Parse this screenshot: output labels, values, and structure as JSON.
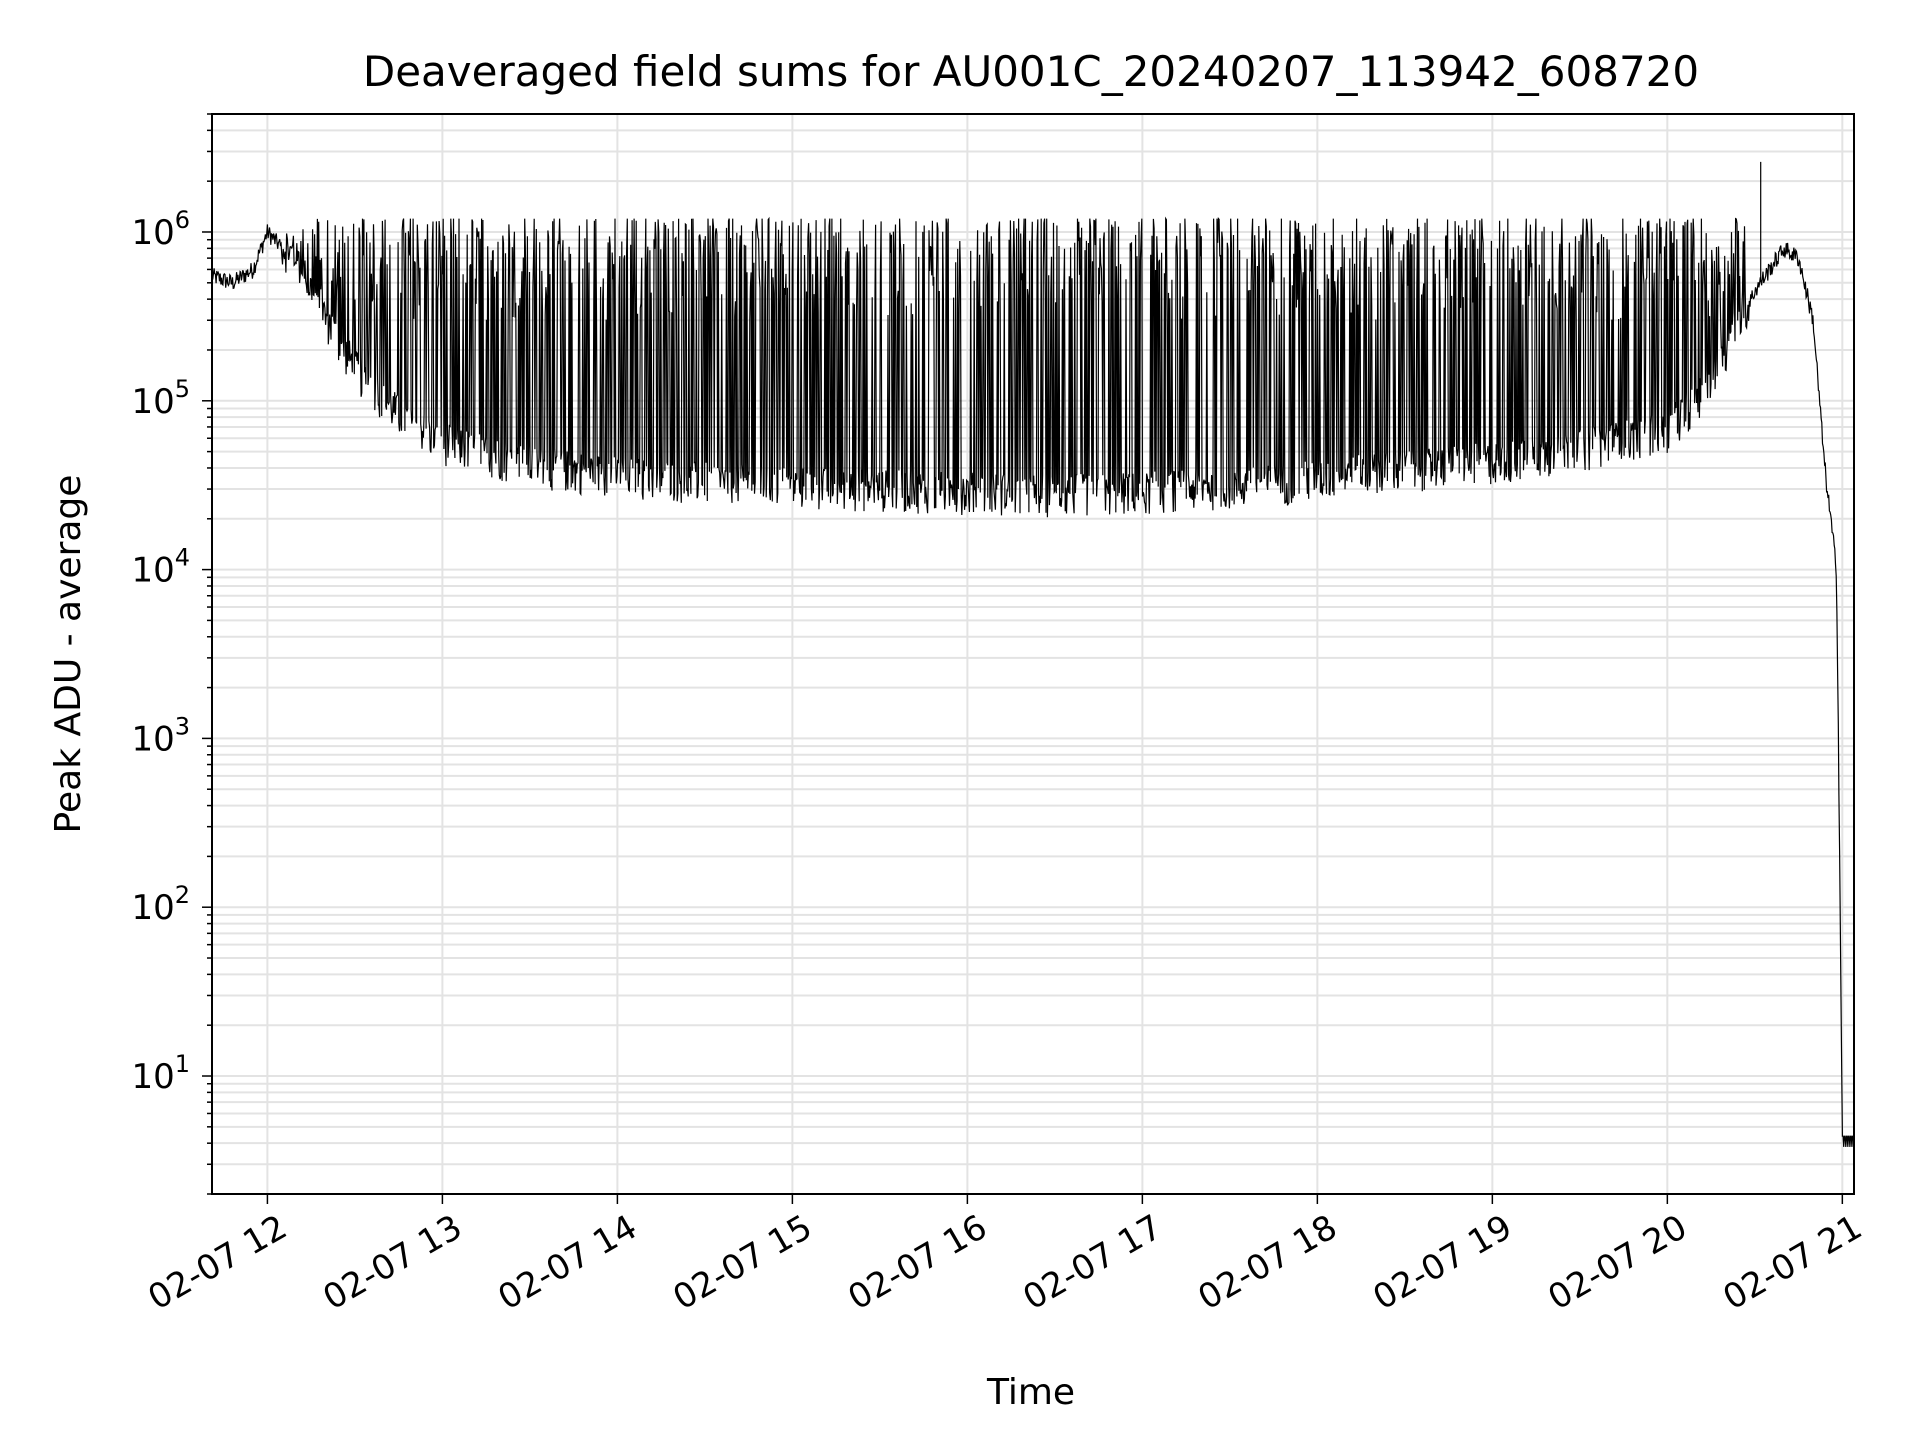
{
  "chart_data": {
    "type": "line",
    "title": "Deaveraged field sums for AU001C_20240207_113942_608720",
    "xlabel": "Time",
    "ylabel": "Peak ADU - average",
    "yscale": "log",
    "ylim": [
      2,
      5000000
    ],
    "xlim": [
      "02-07 11:41",
      "02-07 21:04"
    ],
    "grid": true,
    "line_color": "#000000",
    "grid_color": "#e3e3e3",
    "x_ticks": [
      "02-07 12",
      "02-07 13",
      "02-07 14",
      "02-07 15",
      "02-07 16",
      "02-07 17",
      "02-07 18",
      "02-07 19",
      "02-07 20",
      "02-07 21"
    ],
    "y_ticks": [
      {
        "base": "10",
        "exp": "1"
      },
      {
        "base": "10",
        "exp": "2"
      },
      {
        "base": "10",
        "exp": "3"
      },
      {
        "base": "10",
        "exp": "4"
      },
      {
        "base": "10",
        "exp": "5"
      },
      {
        "base": "10",
        "exp": "6"
      }
    ],
    "series": [
      {
        "baseline": {
          "x": [
            "02-07 11:41",
            "02-07 11:48",
            "02-07 11:55",
            "02-07 12:00",
            "02-07 12:10",
            "02-07 12:20",
            "02-07 12:30",
            "02-07 12:45",
            "02-07 13:00",
            "02-07 13:30",
            "02-07 14:00",
            "02-07 14:30",
            "02-07 15:00",
            "02-07 15:30",
            "02-07 16:00",
            "02-07 16:30",
            "02-07 17:00",
            "02-07 17:30",
            "02-07 18:00",
            "02-07 18:30",
            "02-07 19:00",
            "02-07 19:30",
            "02-07 20:00",
            "02-07 20:15",
            "02-07 20:30",
            "02-07 20:40",
            "02-07 20:45",
            "02-07 20:50",
            "02-07 20:54",
            "02-07 20:58",
            "02-07 20:59",
            "02-07 21:00",
            "02-07 21:04"
          ],
          "y": [
            550000,
            500000,
            600000,
            1000000,
            650000,
            300000,
            150000,
            80000,
            55000,
            40000,
            35000,
            32000,
            30000,
            29000,
            28000,
            27000,
            28000,
            30000,
            33000,
            38000,
            42000,
            50000,
            65000,
            120000,
            450000,
            800000,
            700000,
            300000,
            40000,
            10000,
            300,
            4,
            4
          ]
        },
        "spikes": {
          "start": "02-07 12:05",
          "end": "02-07 20:28",
          "approx_count": 900,
          "peak_y": 1200000,
          "max_y": 2600000,
          "max_x": "02-07 20:32"
        }
      }
    ]
  }
}
